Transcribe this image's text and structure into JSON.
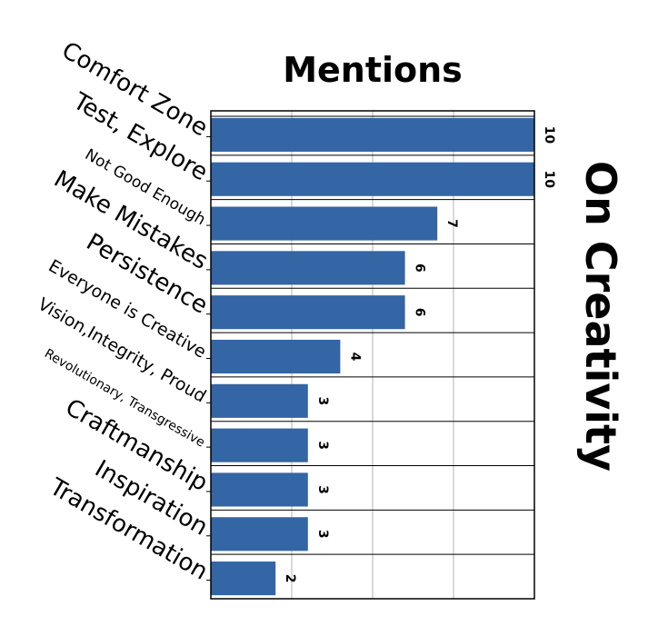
{
  "chart_data": {
    "type": "bar",
    "orientation": "horizontal",
    "title": "On Creativity",
    "xlabel": "Mentions",
    "ylabel": "",
    "xlim": [
      0,
      10
    ],
    "grid": true,
    "colors": {
      "bar": "#3465a4"
    },
    "categories": [
      "Comfort Zone",
      "Test, Explore",
      "Not Good Enough",
      "Make Mistakes",
      "Persistence",
      "Everyone is Creative",
      "Vision,Integrity, Proud",
      "Revolutionary, Transgressive",
      "Craftmanship",
      "Inspiration",
      "Transformation"
    ],
    "values": [
      10,
      10,
      7,
      6,
      6,
      4,
      3,
      3,
      3,
      3,
      2
    ]
  }
}
